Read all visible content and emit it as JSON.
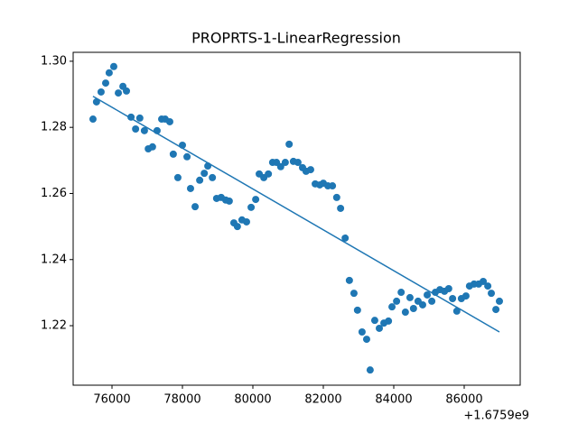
{
  "chart_data": {
    "type": "scatter",
    "title": "PROPRTS-1-LinearRegression",
    "x_offset_label": "+1.6759e9",
    "xlim": [
      74897,
      87590
    ],
    "xticks": [
      76000,
      78000,
      80000,
      82000,
      84000,
      86000
    ],
    "ylim": [
      1.202,
      1.3027
    ],
    "yticks": [
      {
        "value": 1.22,
        "label": "1.22"
      },
      {
        "value": 1.24,
        "label": "1.24"
      },
      {
        "value": 1.26,
        "label": "1.26"
      },
      {
        "value": 1.28,
        "label": "1.28"
      },
      {
        "value": 1.3,
        "label": "1.30"
      }
    ],
    "series": [
      {
        "type": "scatter",
        "color": "#1f77b4",
        "x": [
          75460,
          75560,
          75690,
          75820,
          75920,
          76050,
          76180,
          76310,
          76410,
          76540,
          76670,
          76790,
          76920,
          77030,
          77150,
          77280,
          77410,
          77510,
          77640,
          77740,
          77870,
          78000,
          78130,
          78230,
          78360,
          78490,
          78620,
          78720,
          78850,
          78970,
          79100,
          79230,
          79330,
          79460,
          79560,
          79690,
          79820,
          79950,
          80080,
          80180,
          80310,
          80440,
          80560,
          80670,
          80790,
          80920,
          81030,
          81150,
          81280,
          81410,
          81510,
          81640,
          81770,
          81900,
          82000,
          82130,
          82260,
          82380,
          82490,
          82620,
          82740,
          82870,
          82970,
          83100,
          83230,
          83330,
          83460,
          83590,
          83720,
          83850,
          83950,
          84080,
          84210,
          84330,
          84460,
          84560,
          84690,
          84820,
          84950,
          85080,
          85180,
          85310,
          85440,
          85560,
          85670,
          85790,
          85920,
          86050,
          86150,
          86280,
          86410,
          86540,
          86670,
          86770,
          86900,
          87000
        ],
        "values": [
          1.2825,
          1.2877,
          1.2907,
          1.2934,
          1.2965,
          1.2984,
          1.2904,
          1.2924,
          1.291,
          1.2831,
          1.2795,
          1.2828,
          1.279,
          1.2735,
          1.2741,
          1.279,
          1.2825,
          1.2825,
          1.2817,
          1.2719,
          1.2648,
          1.2746,
          1.2711,
          1.2615,
          1.256,
          1.264,
          1.2661,
          1.2683,
          1.2648,
          1.2585,
          1.2588,
          1.258,
          1.2577,
          1.2511,
          1.25,
          1.252,
          1.2514,
          1.2558,
          1.2582,
          1.2659,
          1.2648,
          1.2659,
          1.2694,
          1.2694,
          1.2681,
          1.2694,
          1.2749,
          1.2697,
          1.2694,
          1.2678,
          1.2667,
          1.2672,
          1.2629,
          1.2626,
          1.2631,
          1.2623,
          1.2623,
          1.2588,
          1.2555,
          1.2465,
          1.2337,
          1.2298,
          1.2247,
          1.2181,
          1.2159,
          1.2066,
          1.2216,
          1.2192,
          1.2208,
          1.2214,
          1.2257,
          1.2274,
          1.2301,
          1.2241,
          1.2285,
          1.2252,
          1.2274,
          1.2263,
          1.2293,
          1.2274,
          1.2301,
          1.2309,
          1.2304,
          1.2312,
          1.2282,
          1.2244,
          1.2282,
          1.229,
          1.232,
          1.2326,
          1.2326,
          1.2334,
          1.232,
          1.2298,
          1.2249,
          1.2274
        ]
      },
      {
        "type": "line",
        "color": "#1f77b4",
        "x": [
          75460,
          87000
        ],
        "values": [
          1.2894,
          1.2181
        ]
      }
    ]
  }
}
